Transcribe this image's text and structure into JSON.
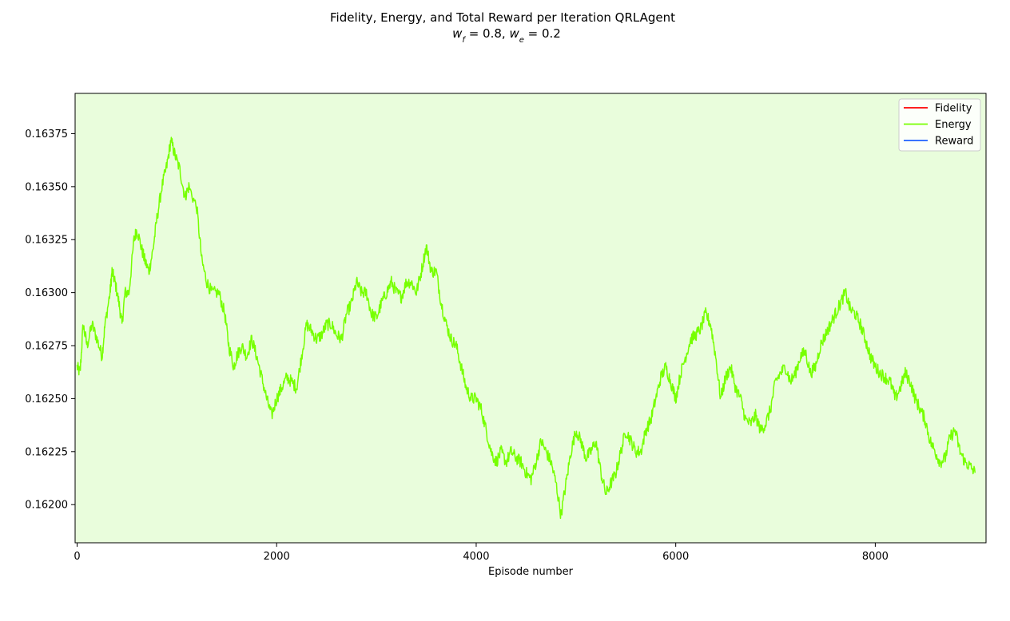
{
  "chart_data": {
    "type": "line",
    "title": "Fidelity, Energy, and Total Reward per Iteration QRLAgent",
    "subtitle": {
      "parts": [
        {
          "text": "w",
          "style": "italic"
        },
        {
          "text": "f",
          "style": "sub"
        },
        {
          "text": " = 0.8, ",
          "style": "normal"
        },
        {
          "text": "w",
          "style": "italic"
        },
        {
          "text": "e",
          "style": "sub"
        },
        {
          "text": " = 0.2",
          "style": "normal"
        }
      ]
    },
    "xlabel": "Episode number",
    "ylabel": "",
    "xlim": [
      -20,
      9110
    ],
    "ylim": [
      0.16182,
      0.16394
    ],
    "xticks": [
      0,
      2000,
      4000,
      6000,
      8000
    ],
    "xtick_labels": [
      "0",
      "2000",
      "4000",
      "6000",
      "8000"
    ],
    "yticks": [
      0.162,
      0.16225,
      0.1625,
      0.16275,
      0.163,
      0.16325,
      0.1635,
      0.16375
    ],
    "ytick_labels": [
      "0.16200",
      "0.16225",
      "0.16250",
      "0.16275",
      "0.16300",
      "0.16325",
      "0.16350",
      "0.16375"
    ],
    "grid": false,
    "legend_position": "top-right",
    "plot_background": "#e9fddc",
    "fidelity_band": {
      "x_start": 0,
      "x_end": 9000,
      "color": "#e9fddc"
    },
    "series": [
      {
        "name": "Fidelity",
        "color": "#ff0000",
        "points": []
      },
      {
        "name": "Energy",
        "color": "#77ff00",
        "noise_amplitude": 3e-05,
        "points": [
          [
            0,
            0.16265
          ],
          [
            30,
            0.16262
          ],
          [
            60,
            0.16285
          ],
          [
            100,
            0.16275
          ],
          [
            150,
            0.16285
          ],
          [
            200,
            0.16278
          ],
          [
            250,
            0.1627
          ],
          [
            280,
            0.16285
          ],
          [
            330,
            0.163
          ],
          [
            350,
            0.1631
          ],
          [
            380,
            0.16305
          ],
          [
            420,
            0.16295
          ],
          [
            450,
            0.16285
          ],
          [
            480,
            0.163
          ],
          [
            520,
            0.163
          ],
          [
            570,
            0.16325
          ],
          [
            600,
            0.1633
          ],
          [
            650,
            0.1632
          ],
          [
            680,
            0.16315
          ],
          [
            720,
            0.1631
          ],
          [
            760,
            0.1632
          ],
          [
            800,
            0.16335
          ],
          [
            850,
            0.1635
          ],
          [
            900,
            0.1636
          ],
          [
            940,
            0.16372
          ],
          [
            980,
            0.16365
          ],
          [
            1030,
            0.16358
          ],
          [
            1080,
            0.16345
          ],
          [
            1120,
            0.1635
          ],
          [
            1200,
            0.1634
          ],
          [
            1250,
            0.16315
          ],
          [
            1300,
            0.16305
          ],
          [
            1350,
            0.163
          ],
          [
            1420,
            0.163
          ],
          [
            1480,
            0.1629
          ],
          [
            1520,
            0.16275
          ],
          [
            1570,
            0.16265
          ],
          [
            1600,
            0.1627
          ],
          [
            1650,
            0.16275
          ],
          [
            1700,
            0.1627
          ],
          [
            1750,
            0.16278
          ],
          [
            1800,
            0.1627
          ],
          [
            1850,
            0.1626
          ],
          [
            1900,
            0.1625
          ],
          [
            1950,
            0.16242
          ],
          [
            2000,
            0.1625
          ],
          [
            2050,
            0.16255
          ],
          [
            2100,
            0.1626
          ],
          [
            2150,
            0.16258
          ],
          [
            2200,
            0.16255
          ],
          [
            2250,
            0.1627
          ],
          [
            2300,
            0.16285
          ],
          [
            2350,
            0.16282
          ],
          [
            2400,
            0.16278
          ],
          [
            2450,
            0.1628
          ],
          [
            2500,
            0.16285
          ],
          [
            2550,
            0.16285
          ],
          [
            2600,
            0.1628
          ],
          [
            2650,
            0.16278
          ],
          [
            2700,
            0.1629
          ],
          [
            2750,
            0.16295
          ],
          [
            2800,
            0.16305
          ],
          [
            2850,
            0.163
          ],
          [
            2900,
            0.163
          ],
          [
            2950,
            0.1629
          ],
          [
            3000,
            0.16288
          ],
          [
            3050,
            0.16295
          ],
          [
            3100,
            0.163
          ],
          [
            3150,
            0.16305
          ],
          [
            3200,
            0.163
          ],
          [
            3250,
            0.16298
          ],
          [
            3300,
            0.16305
          ],
          [
            3350,
            0.16305
          ],
          [
            3400,
            0.163
          ],
          [
            3450,
            0.1631
          ],
          [
            3500,
            0.16322
          ],
          [
            3550,
            0.1631
          ],
          [
            3600,
            0.1631
          ],
          [
            3650,
            0.16295
          ],
          [
            3700,
            0.16285
          ],
          [
            3750,
            0.16278
          ],
          [
            3800,
            0.16275
          ],
          [
            3850,
            0.16265
          ],
          [
            3900,
            0.16255
          ],
          [
            3950,
            0.1625
          ],
          [
            4000,
            0.1625
          ],
          [
            4050,
            0.16245
          ],
          [
            4100,
            0.16235
          ],
          [
            4150,
            0.16225
          ],
          [
            4200,
            0.1622
          ],
          [
            4250,
            0.16225
          ],
          [
            4300,
            0.1622
          ],
          [
            4350,
            0.16225
          ],
          [
            4400,
            0.16222
          ],
          [
            4450,
            0.1622
          ],
          [
            4500,
            0.16215
          ],
          [
            4550,
            0.16212
          ],
          [
            4600,
            0.1622
          ],
          [
            4650,
            0.1623
          ],
          [
            4700,
            0.16225
          ],
          [
            4750,
            0.1622
          ],
          [
            4800,
            0.1621
          ],
          [
            4850,
            0.16195
          ],
          [
            4900,
            0.1621
          ],
          [
            4950,
            0.16225
          ],
          [
            5000,
            0.16235
          ],
          [
            5050,
            0.1623
          ],
          [
            5100,
            0.16222
          ],
          [
            5150,
            0.16225
          ],
          [
            5200,
            0.1623
          ],
          [
            5250,
            0.16215
          ],
          [
            5300,
            0.16205
          ],
          [
            5350,
            0.1621
          ],
          [
            5400,
            0.16215
          ],
          [
            5450,
            0.16225
          ],
          [
            5500,
            0.16235
          ],
          [
            5550,
            0.1623
          ],
          [
            5600,
            0.16225
          ],
          [
            5650,
            0.16225
          ],
          [
            5700,
            0.16235
          ],
          [
            5750,
            0.1624
          ],
          [
            5800,
            0.1625
          ],
          [
            5850,
            0.1626
          ],
          [
            5900,
            0.16265
          ],
          [
            5950,
            0.16258
          ],
          [
            6000,
            0.1625
          ],
          [
            6050,
            0.16262
          ],
          [
            6100,
            0.1627
          ],
          [
            6150,
            0.16278
          ],
          [
            6200,
            0.1628
          ],
          [
            6250,
            0.16283
          ],
          [
            6300,
            0.1629
          ],
          [
            6350,
            0.16285
          ],
          [
            6400,
            0.1627
          ],
          [
            6450,
            0.1625
          ],
          [
            6500,
            0.1626
          ],
          [
            6550,
            0.16265
          ],
          [
            6600,
            0.16255
          ],
          [
            6650,
            0.1625
          ],
          [
            6700,
            0.1624
          ],
          [
            6750,
            0.16238
          ],
          [
            6800,
            0.16242
          ],
          [
            6850,
            0.16235
          ],
          [
            6900,
            0.16238
          ],
          [
            6950,
            0.16245
          ],
          [
            7000,
            0.16258
          ],
          [
            7050,
            0.16262
          ],
          [
            7100,
            0.16265
          ],
          [
            7150,
            0.16258
          ],
          [
            7200,
            0.16262
          ],
          [
            7250,
            0.1627
          ],
          [
            7300,
            0.16272
          ],
          [
            7350,
            0.16262
          ],
          [
            7400,
            0.16265
          ],
          [
            7450,
            0.16275
          ],
          [
            7500,
            0.1628
          ],
          [
            7550,
            0.16285
          ],
          [
            7600,
            0.1629
          ],
          [
            7650,
            0.16295
          ],
          [
            7700,
            0.163
          ],
          [
            7750,
            0.16292
          ],
          [
            7800,
            0.1629
          ],
          [
            7850,
            0.16285
          ],
          [
            7900,
            0.16278
          ],
          [
            7950,
            0.1627
          ],
          [
            8000,
            0.16265
          ],
          [
            8050,
            0.16262
          ],
          [
            8100,
            0.1626
          ],
          [
            8150,
            0.16258
          ],
          [
            8200,
            0.1625
          ],
          [
            8250,
            0.16255
          ],
          [
            8300,
            0.16262
          ],
          [
            8350,
            0.16258
          ],
          [
            8400,
            0.1625
          ],
          [
            8450,
            0.16245
          ],
          [
            8500,
            0.1624
          ],
          [
            8550,
            0.1623
          ],
          [
            8600,
            0.16225
          ],
          [
            8650,
            0.1622
          ],
          [
            8700,
            0.16222
          ],
          [
            8750,
            0.16232
          ],
          [
            8800,
            0.16235
          ],
          [
            8850,
            0.16225
          ],
          [
            8900,
            0.1622
          ],
          [
            8950,
            0.16218
          ],
          [
            9000,
            0.16215
          ]
        ]
      },
      {
        "name": "Reward",
        "color": "#1f5fff",
        "points": []
      }
    ]
  }
}
